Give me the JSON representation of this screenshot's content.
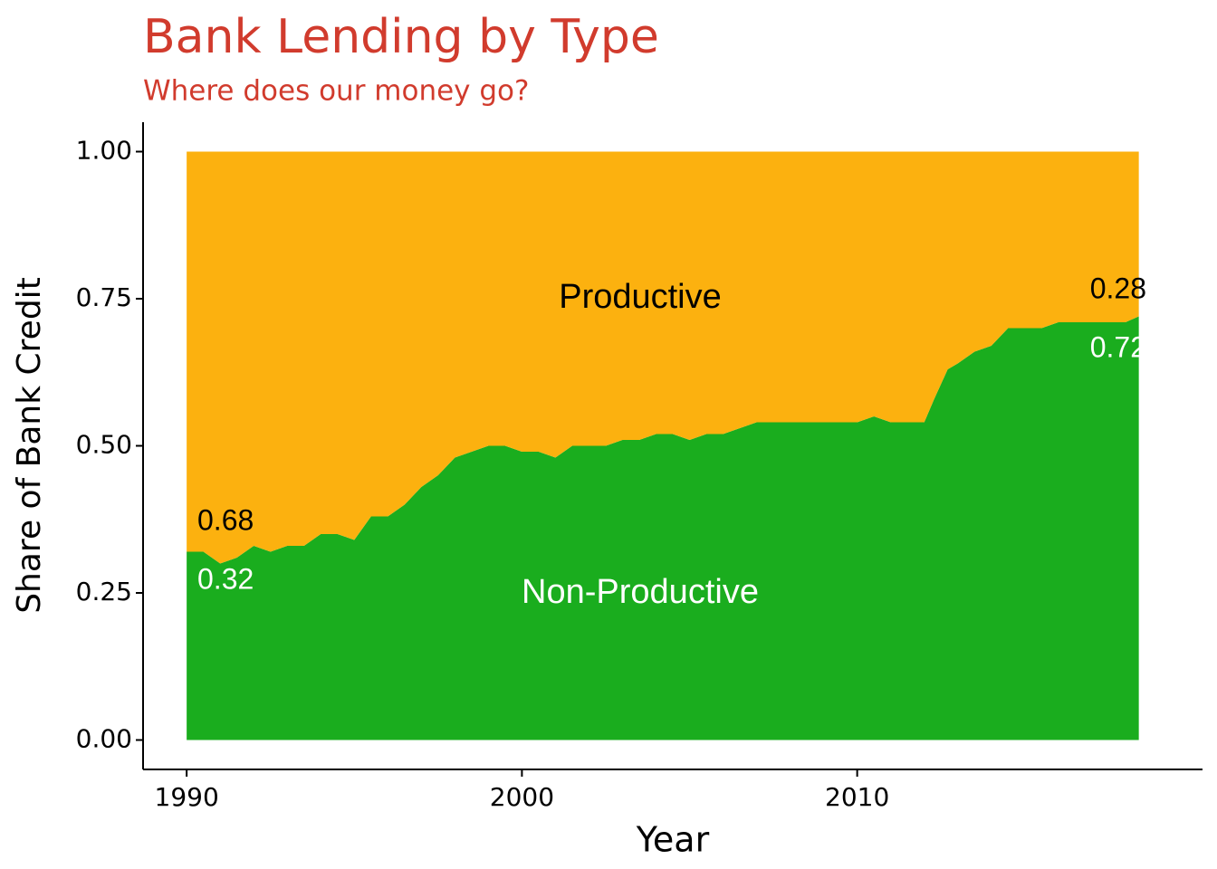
{
  "chart_data": {
    "type": "stacked_area",
    "title": "Bank Lending by Type",
    "subtitle": "Where does our money go?",
    "x_label": "Year",
    "y_label": "Share of Bank Credit",
    "x": [
      1990,
      1990.5,
      1991,
      1991.5,
      1992,
      1992.5,
      1993,
      1993.5,
      1994,
      1994.5,
      1995,
      1995.5,
      1996,
      1996.5,
      1997,
      1997.5,
      1998,
      1998.5,
      1999,
      1999.5,
      2000,
      2000.5,
      2001,
      2001.5,
      2002,
      2002.5,
      2003,
      2003.5,
      2004,
      2004.5,
      2005,
      2005.5,
      2006,
      2006.5,
      2007,
      2007.5,
      2008,
      2008.5,
      2009,
      2009.5,
      2010,
      2010.5,
      2011,
      2011.5,
      2012,
      2012.3,
      2012.7,
      2013,
      2013.5,
      2014,
      2014.5,
      2015,
      2015.5,
      2016,
      2016.5,
      2017,
      2017.5,
      2018,
      2018.4
    ],
    "series": [
      {
        "name": "Non-Productive",
        "color": "#1aad1e",
        "values": [
          0.32,
          0.32,
          0.3,
          0.31,
          0.33,
          0.32,
          0.33,
          0.33,
          0.35,
          0.35,
          0.34,
          0.38,
          0.38,
          0.4,
          0.43,
          0.45,
          0.48,
          0.49,
          0.5,
          0.5,
          0.49,
          0.49,
          0.48,
          0.5,
          0.5,
          0.5,
          0.51,
          0.51,
          0.52,
          0.52,
          0.51,
          0.52,
          0.52,
          0.53,
          0.54,
          0.54,
          0.54,
          0.54,
          0.54,
          0.54,
          0.54,
          0.55,
          0.54,
          0.54,
          0.54,
          0.58,
          0.63,
          0.64,
          0.66,
          0.67,
          0.7,
          0.7,
          0.7,
          0.71,
          0.71,
          0.71,
          0.71,
          0.71,
          0.72
        ]
      },
      {
        "name": "Productive",
        "color": "#fcb10f",
        "values": [
          0.68,
          0.68,
          0.7,
          0.69,
          0.67,
          0.68,
          0.67,
          0.67,
          0.65,
          0.65,
          0.66,
          0.62,
          0.62,
          0.6,
          0.57,
          0.55,
          0.52,
          0.51,
          0.5,
          0.5,
          0.51,
          0.51,
          0.52,
          0.5,
          0.5,
          0.5,
          0.49,
          0.49,
          0.48,
          0.48,
          0.49,
          0.48,
          0.48,
          0.47,
          0.46,
          0.46,
          0.46,
          0.46,
          0.46,
          0.46,
          0.46,
          0.45,
          0.46,
          0.46,
          0.46,
          0.42,
          0.37,
          0.36,
          0.34,
          0.33,
          0.3,
          0.3,
          0.3,
          0.29,
          0.29,
          0.29,
          0.29,
          0.29,
          0.28
        ]
      }
    ],
    "annotations": [
      "0.68",
      "0.32",
      "0.28",
      "0.72"
    ],
    "xlim": [
      1988.7,
      2020.3
    ],
    "ylim": [
      -0.05,
      1.05
    ],
    "xticks": [
      1990,
      2000,
      2010
    ],
    "yticks": [
      {
        "value": 0,
        "label": "0.00"
      },
      {
        "value": 0.25,
        "label": "0.25"
      },
      {
        "value": 0.5,
        "label": "0.50"
      },
      {
        "value": 0.75,
        "label": "0.75"
      },
      {
        "value": 1,
        "label": "1.00"
      }
    ]
  }
}
